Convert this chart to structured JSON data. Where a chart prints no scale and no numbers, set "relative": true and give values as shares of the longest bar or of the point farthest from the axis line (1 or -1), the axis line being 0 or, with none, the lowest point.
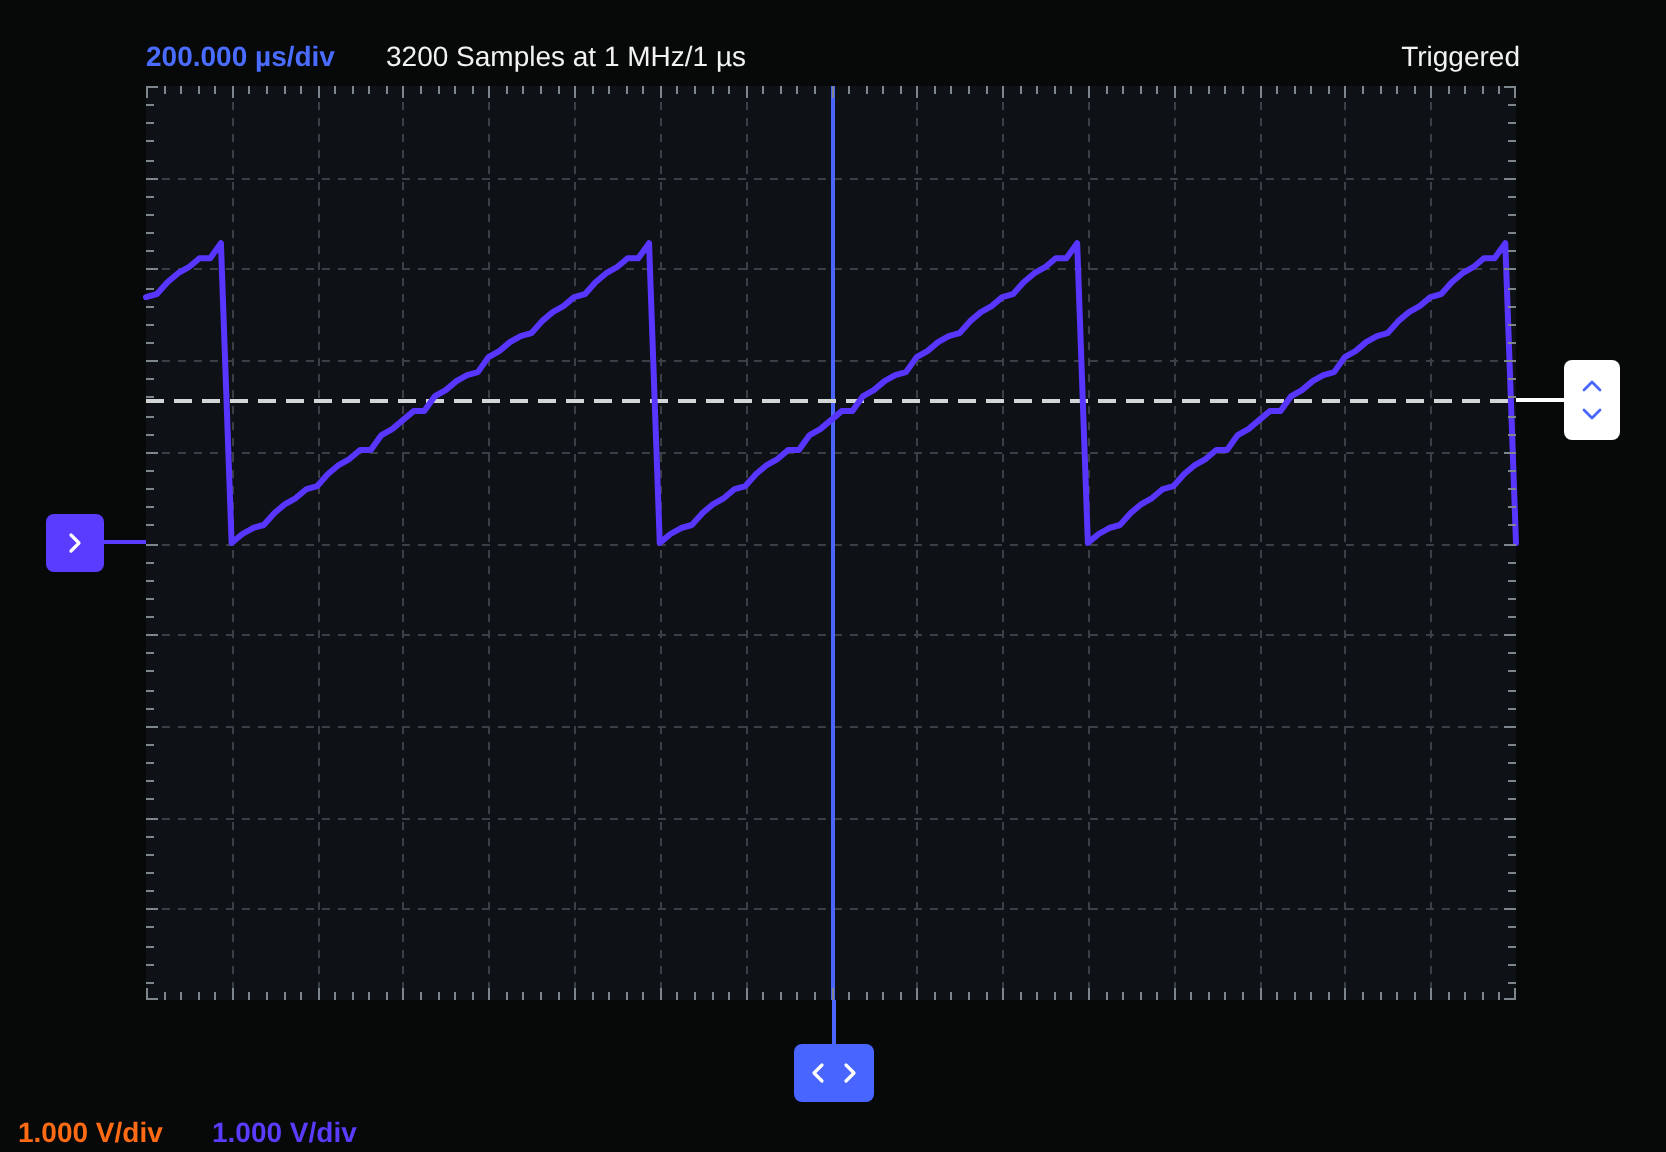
{
  "chart_data": {
    "type": "line",
    "relative": true,
    "grid": true,
    "categories": [
      null,
      null,
      null,
      null,
      null,
      null,
      null,
      null,
      null,
      null,
      null,
      null,
      null,
      null,
      null,
      null,
      null,
      null,
      null,
      null,
      null,
      null,
      null,
      null,
      null,
      null,
      null,
      null,
      null,
      null,
      null,
      null,
      null,
      null,
      null,
      null,
      null,
      null,
      null,
      null,
      null,
      null,
      null,
      null,
      null,
      null,
      null,
      null,
      null,
      null,
      null,
      null,
      null,
      null,
      null,
      null,
      null,
      null,
      null,
      null,
      null,
      null,
      null,
      null,
      null,
      null,
      null,
      null,
      null,
      null,
      null,
      null,
      null,
      null,
      null,
      null,
      null,
      null,
      null,
      null,
      null,
      null,
      null,
      null,
      null,
      null,
      null,
      null,
      null,
      null,
      null,
      null,
      null,
      null,
      null,
      null,
      null,
      null,
      null,
      null,
      null,
      null,
      null,
      null,
      null,
      null,
      null,
      null,
      null,
      null,
      null,
      null,
      null,
      null,
      null,
      null,
      null,
      null,
      null,
      null,
      null,
      null,
      null,
      null,
      null,
      null,
      null,
      null,
      null
    ],
    "series": [
      {
        "color": "#5836ff",
        "values": [
          0.82,
          0.83,
          0.87,
          0.9,
          0.92,
          0.95,
          0.95,
          1,
          0,
          0.03,
          0.05,
          0.06,
          0.1,
          0.13,
          0.15,
          0.18,
          0.19,
          0.23,
          0.26,
          0.28,
          0.31,
          0.31,
          0.36,
          0.38,
          0.41,
          0.44,
          0.44,
          0.49,
          0.51,
          0.54,
          0.56,
          0.57,
          0.62,
          0.64,
          0.67,
          0.69,
          0.7,
          0.74,
          0.77,
          0.79,
          0.82,
          0.83,
          0.87,
          0.9,
          0.92,
          0.95,
          0.95,
          1,
          0,
          0.03,
          0.05,
          0.06,
          0.1,
          0.13,
          0.15,
          0.18,
          0.19,
          0.23,
          0.26,
          0.28,
          0.31,
          0.31,
          0.36,
          0.38,
          0.41,
          0.44,
          0.44,
          0.49,
          0.51,
          0.54,
          0.56,
          0.57,
          0.62,
          0.64,
          0.67,
          0.69,
          0.7,
          0.74,
          0.77,
          0.79,
          0.82,
          0.83,
          0.87,
          0.9,
          0.92,
          0.95,
          0.95,
          1,
          0,
          0.03,
          0.05,
          0.06,
          0.1,
          0.13,
          0.15,
          0.18,
          0.19,
          0.23,
          0.26,
          0.28,
          0.31,
          0.31,
          0.36,
          0.38,
          0.41,
          0.44,
          0.44,
          0.49,
          0.51,
          0.54,
          0.56,
          0.57,
          0.62,
          0.64,
          0.67,
          0.69,
          0.7,
          0.74,
          0.77,
          0.79,
          0.82,
          0.83,
          0.87,
          0.9,
          0.92,
          0.95,
          0.95,
          1,
          0
        ]
      }
    ],
    "ref_lines": [
      {
        "axis": "y",
        "value": 0.48,
        "color": "#d2d6d6",
        "line_style": "dashed"
      }
    ],
    "annotations": [
      "200.000 µs/div",
      "3200 Samples at 1 MHz/1 µs",
      "Triggered",
      "1.000 V/div",
      "1.000 V/div"
    ]
  }
}
